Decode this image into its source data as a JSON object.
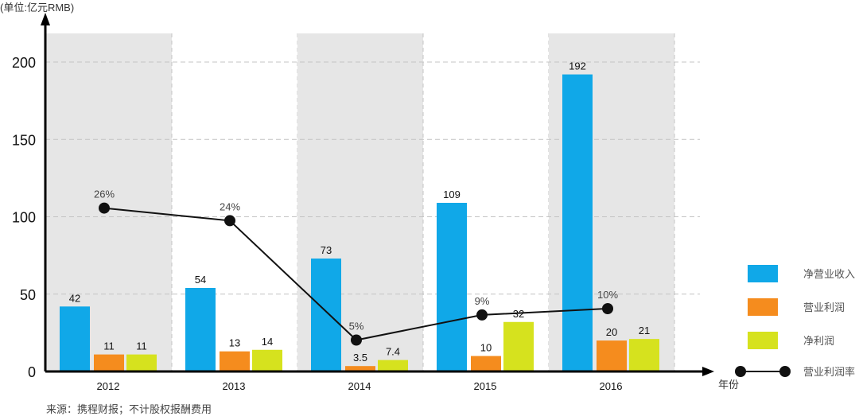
{
  "chart_data": {
    "type": "bar",
    "unit_label": "(单位:亿元RMB)",
    "xlabel": "年份",
    "source": "来源：携程财报；不计股权报酬费用",
    "categories": [
      "2012",
      "2013",
      "2014",
      "2015",
      "2016"
    ],
    "ylim": [
      0,
      200
    ],
    "yticks": [
      "0",
      "50",
      "100",
      "150",
      "200"
    ],
    "grid": true,
    "legend_position": "right",
    "series": [
      {
        "name": "净营业收入",
        "color": "#10a8e8",
        "values": [
          42,
          54,
          73,
          109,
          192
        ],
        "labels": [
          "42",
          "54",
          "73",
          "109",
          "192"
        ]
      },
      {
        "name": "营业利润",
        "color": "#f58c1e",
        "values": [
          11,
          13,
          3.5,
          10,
          20
        ],
        "labels": [
          "11",
          "13",
          "3.5",
          "10",
          "20"
        ]
      },
      {
        "name": "净利润",
        "color": "#d6e21e",
        "values": [
          11,
          14,
          7.4,
          32,
          21
        ],
        "labels": [
          "11",
          "14",
          "7.4",
          "32",
          "21"
        ]
      }
    ],
    "line_series": {
      "name": "营业利润率",
      "color": "#111111",
      "values": [
        26,
        24,
        5,
        9,
        10
      ],
      "labels": [
        "26%",
        "24%",
        "5%",
        "9%",
        "10%"
      ]
    }
  }
}
